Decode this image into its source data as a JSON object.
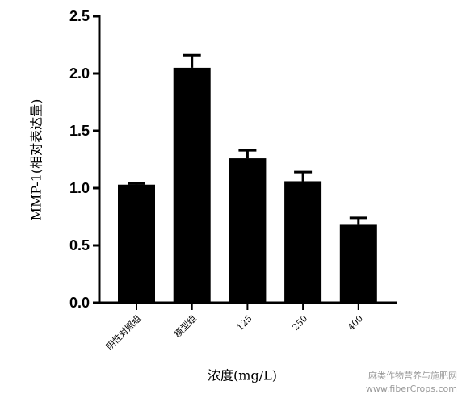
{
  "chart_data": {
    "type": "bar",
    "x_label": "浓度(mg/L)",
    "y_label": "MMP-1(相对表达量)",
    "categories": [
      "阴性对照组",
      "模型组",
      "125",
      "250",
      "400"
    ],
    "values": [
      1.03,
      2.05,
      1.26,
      1.06,
      0.68
    ],
    "errors": [
      0.01,
      0.11,
      0.07,
      0.08,
      0.06
    ],
    "color": "#000000",
    "ylim": [
      0,
      2.5
    ],
    "yticks": [
      {
        "value": 0,
        "label": "0.0"
      },
      0.5,
      {
        "value": 1,
        "label": "1.0"
      },
      1.5,
      {
        "value": 2,
        "label": "2.0"
      },
      2.5
    ]
  },
  "watermark": [
    "麻类作物营养与施肥网",
    "www.fiberCrops.com"
  ]
}
